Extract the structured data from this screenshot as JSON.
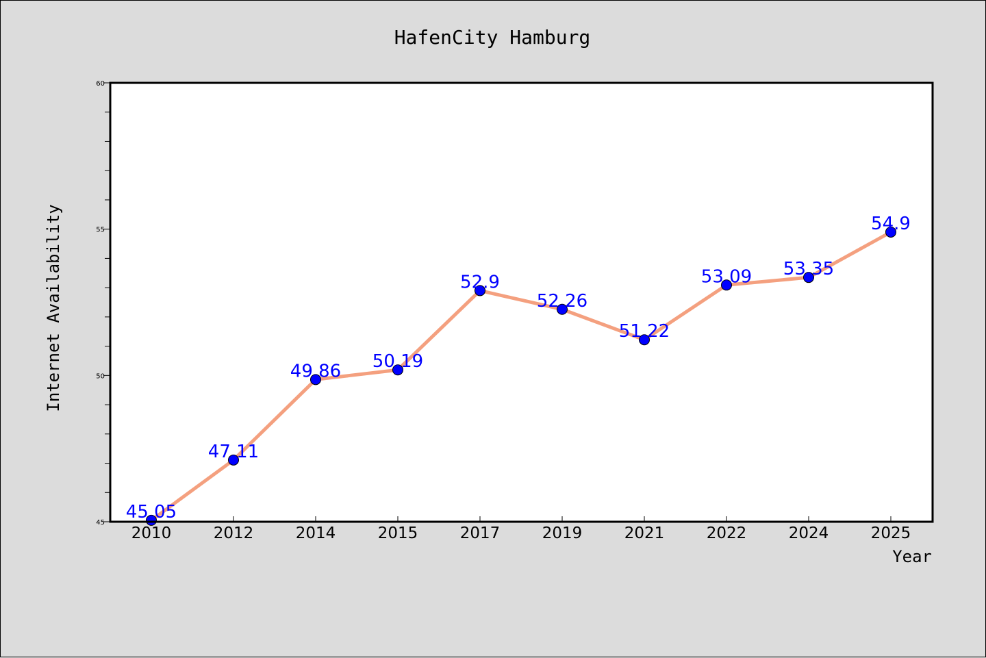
{
  "chart_data": {
    "type": "line",
    "title": "HafenCity Hamburg",
    "xlabel": "Year",
    "ylabel": "Internet Availability",
    "categories": [
      "2010",
      "2012",
      "2014",
      "2015",
      "2017",
      "2019",
      "2021",
      "2022",
      "2024",
      "2025"
    ],
    "series": [
      {
        "values": [
          45.05,
          47.11,
          49.86,
          50.19,
          52.9,
          52.26,
          51.22,
          53.09,
          53.35,
          54.9
        ],
        "data_labels": [
          "45.05",
          "47.11",
          "49.86",
          "50.19",
          "52.9",
          "52.26",
          "51.22",
          "53.09",
          "53.35",
          "54.9"
        ]
      }
    ],
    "ylim": [
      45,
      60
    ],
    "yticks": [
      "45",
      "50",
      "55",
      "60"
    ],
    "y_minor_step": 1,
    "grid": false,
    "legend": "none",
    "colors": {
      "line": "#f4a07f",
      "marker": "#0000ff",
      "data_label": "#0000ff",
      "plot_bg": "#ffffff",
      "figure_bg": "#dcdcdc"
    }
  }
}
